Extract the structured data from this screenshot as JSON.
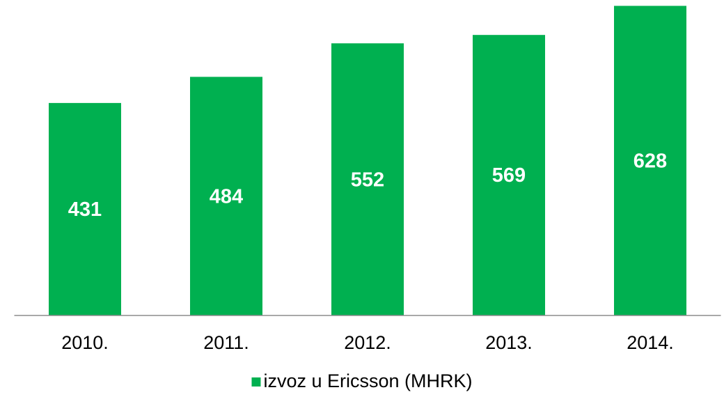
{
  "chart_data": {
    "type": "bar",
    "categories": [
      "2010.",
      "2011.",
      "2012.",
      "2013.",
      "2014."
    ],
    "series": [
      {
        "name": "izvoz u Ericsson (MHRK)",
        "color": "#00b050",
        "values": [
          431,
          484,
          552,
          569,
          628
        ]
      }
    ],
    "ylim": [
      0,
      630
    ],
    "legend": "bottom"
  }
}
